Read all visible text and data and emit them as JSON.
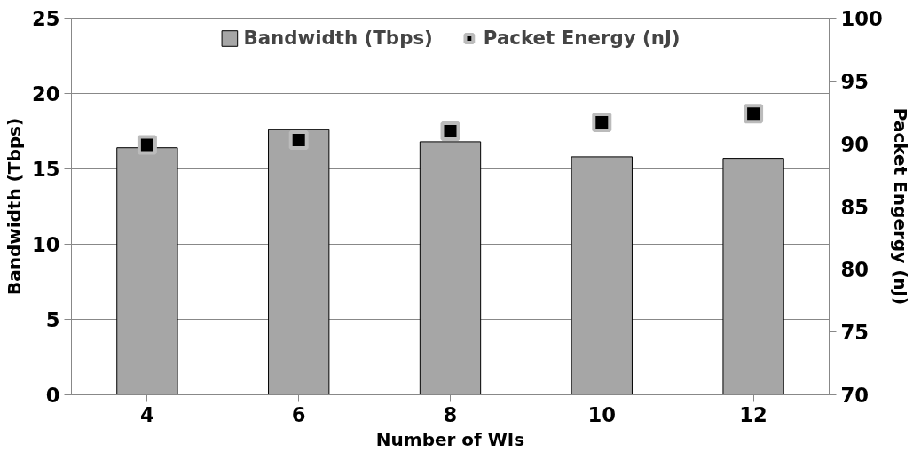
{
  "chart_data": {
    "type": "bar",
    "xlabel": "Number of WIs",
    "ylabel": "Bandwidth (Tbps)",
    "y2label": "Packet Engergy (nJ)",
    "categories": [
      "4",
      "6",
      "8",
      "10",
      "12"
    ],
    "series": [
      {
        "name": "Bandwidth (Tbps)",
        "color": "#a6a6a6",
        "values": [
          16.4,
          17.6,
          16.8,
          15.8,
          15.7
        ]
      },
      {
        "name": "Packet Energy (nJ)",
        "type": "scatter",
        "axis": "y2",
        "marker": "square",
        "color": "#000000",
        "values": [
          89.9,
          90.3,
          91.0,
          91.7,
          92.4
        ]
      }
    ],
    "ylim": [
      0,
      25
    ],
    "yticks": [
      0,
      5,
      10,
      15,
      20,
      25
    ],
    "y2lim": [
      70,
      100
    ],
    "y2ticks": [
      70,
      75,
      80,
      85,
      90,
      95,
      100
    ],
    "grid": "y",
    "legend": "top"
  }
}
